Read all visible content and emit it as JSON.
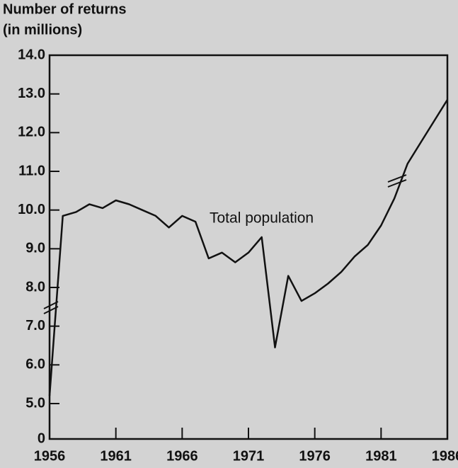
{
  "chart_data": {
    "type": "line",
    "title": "Number of returns",
    "subtitle": "(in millions)",
    "annotation": "Total population",
    "x": [
      1956,
      1957,
      1958,
      1959,
      1960,
      1961,
      1962,
      1963,
      1964,
      1965,
      1966,
      1967,
      1968,
      1969,
      1970,
      1971,
      1972,
      1973,
      1974,
      1975,
      1976,
      1977,
      1978,
      1979,
      1980,
      1981,
      1982,
      1983,
      1984,
      1985,
      1986
    ],
    "series": [
      {
        "name": "Total population",
        "color": "#111111",
        "values": [
          5.2,
          9.85,
          9.95,
          10.15,
          10.05,
          10.25,
          10.15,
          10.0,
          9.85,
          9.55,
          9.85,
          9.7,
          8.75,
          8.9,
          8.65,
          8.9,
          9.3,
          6.45,
          8.3,
          7.65,
          7.85,
          8.1,
          8.4,
          8.8,
          9.1,
          9.6,
          10.3,
          11.2,
          11.75,
          12.3,
          12.85
        ]
      }
    ],
    "xlim": [
      1956,
      1986
    ],
    "xticks": [
      1956,
      1961,
      1966,
      1971,
      1976,
      1981,
      1986
    ],
    "ylim": [
      0,
      14
    ],
    "yticks": [
      0,
      {
        "value": 5,
        "label": "5.0"
      },
      {
        "value": 6,
        "label": "6.0"
      },
      {
        "value": 7,
        "label": "7.0"
      },
      {
        "value": 8,
        "label": "8.0"
      },
      {
        "value": 9,
        "label": "9.0"
      },
      {
        "value": 10,
        "label": "10.0"
      },
      {
        "value": 11,
        "label": "11.0"
      },
      {
        "value": 12,
        "label": "12.0"
      },
      {
        "value": 13,
        "label": "13.0"
      },
      {
        "value": 14,
        "label": "14.0"
      }
    ]
  }
}
